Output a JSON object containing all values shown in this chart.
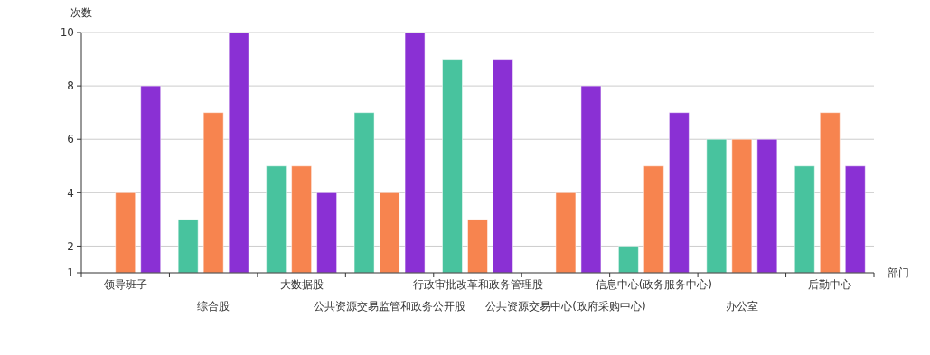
{
  "chart_data": {
    "type": "bar",
    "xlabel": "部门",
    "ylabel": "次数",
    "categories": [
      "领导班子",
      "综合股",
      "大数据股",
      "公共资源交易监管和政务公开股",
      "行政审批改革和政务管理股",
      "公共资源交易中心(政府采购中心)",
      "信息中心(政务服务中心)",
      "办公室",
      "后勤中心"
    ],
    "series": [
      {
        "color": "#48c39e",
        "values": [
          null,
          3,
          5,
          7,
          9,
          null,
          2,
          6,
          5
        ]
      },
      {
        "color": "#f7844f",
        "values": [
          4,
          7,
          5,
          4,
          3,
          4,
          5,
          6,
          7
        ]
      },
      {
        "color": "#8a30d4",
        "values": [
          8,
          10,
          4,
          10,
          9,
          8,
          7,
          6,
          5
        ]
      }
    ],
    "ylim": [
      1,
      10
    ],
    "yticks": [
      1,
      2,
      4,
      6,
      8,
      10
    ],
    "grid": "y"
  }
}
